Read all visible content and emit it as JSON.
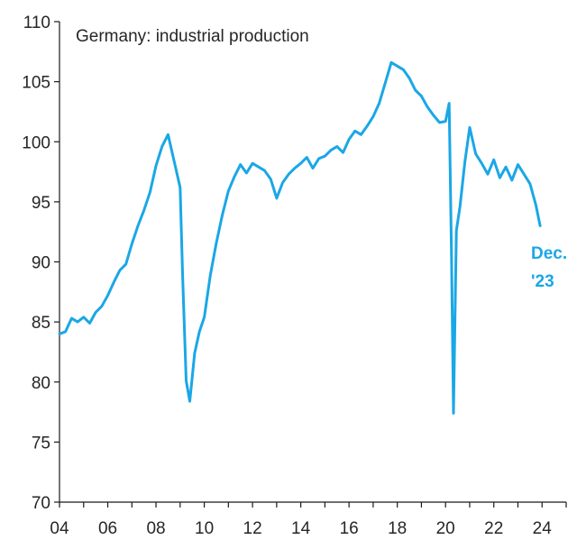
{
  "chart_data": {
    "type": "line",
    "title": "Germany: industrial production",
    "xlabel": "",
    "ylabel": "",
    "xlim": [
      2004,
      2025
    ],
    "ylim": [
      70,
      110
    ],
    "grid": false,
    "legend": "none",
    "x_ticks": [
      2004,
      2006,
      2008,
      2010,
      2012,
      2014,
      2016,
      2018,
      2020,
      2022,
      2024
    ],
    "x_tick_labels": [
      "04",
      "06",
      "08",
      "10",
      "12",
      "14",
      "16",
      "18",
      "20",
      "22",
      "24"
    ],
    "y_ticks": [
      70,
      75,
      80,
      85,
      90,
      95,
      100,
      105,
      110
    ],
    "y_tick_labels": [
      "70",
      "75",
      "80",
      "85",
      "90",
      "95",
      "100",
      "105",
      "110"
    ],
    "annotation": {
      "line1": "Dec.",
      "line2": "'23"
    },
    "series": [
      {
        "color": "#1aa7e6",
        "points": [
          [
            2004.0,
            84.0
          ],
          [
            2004.25,
            84.2
          ],
          [
            2004.5,
            85.3
          ],
          [
            2004.75,
            85.0
          ],
          [
            2005.0,
            85.4
          ],
          [
            2005.25,
            84.9
          ],
          [
            2005.5,
            85.8
          ],
          [
            2005.75,
            86.3
          ],
          [
            2006.0,
            87.2
          ],
          [
            2006.25,
            88.3
          ],
          [
            2006.5,
            89.3
          ],
          [
            2006.75,
            89.8
          ],
          [
            2007.0,
            91.5
          ],
          [
            2007.25,
            93.0
          ],
          [
            2007.5,
            94.3
          ],
          [
            2007.75,
            95.8
          ],
          [
            2008.0,
            98.0
          ],
          [
            2008.25,
            99.6
          ],
          [
            2008.5,
            100.6
          ],
          [
            2008.75,
            98.4
          ],
          [
            2009.0,
            96.2
          ],
          [
            2009.1,
            89.0
          ],
          [
            2009.25,
            80.1
          ],
          [
            2009.4,
            78.4
          ],
          [
            2009.6,
            82.4
          ],
          [
            2009.8,
            84.2
          ],
          [
            2010.0,
            85.4
          ],
          [
            2010.25,
            88.9
          ],
          [
            2010.5,
            91.6
          ],
          [
            2010.75,
            93.9
          ],
          [
            2011.0,
            95.9
          ],
          [
            2011.25,
            97.1
          ],
          [
            2011.5,
            98.1
          ],
          [
            2011.75,
            97.4
          ],
          [
            2012.0,
            98.2
          ],
          [
            2012.25,
            97.9
          ],
          [
            2012.5,
            97.6
          ],
          [
            2012.75,
            96.9
          ],
          [
            2013.0,
            95.3
          ],
          [
            2013.25,
            96.6
          ],
          [
            2013.5,
            97.3
          ],
          [
            2013.75,
            97.8
          ],
          [
            2014.0,
            98.2
          ],
          [
            2014.25,
            98.7
          ],
          [
            2014.5,
            97.8
          ],
          [
            2014.75,
            98.6
          ],
          [
            2015.0,
            98.8
          ],
          [
            2015.25,
            99.3
          ],
          [
            2015.5,
            99.6
          ],
          [
            2015.75,
            99.1
          ],
          [
            2016.0,
            100.2
          ],
          [
            2016.25,
            100.9
          ],
          [
            2016.5,
            100.6
          ],
          [
            2016.75,
            101.3
          ],
          [
            2017.0,
            102.1
          ],
          [
            2017.25,
            103.2
          ],
          [
            2017.5,
            104.9
          ],
          [
            2017.75,
            106.6
          ],
          [
            2018.0,
            106.3
          ],
          [
            2018.25,
            106.0
          ],
          [
            2018.5,
            105.3
          ],
          [
            2018.75,
            104.3
          ],
          [
            2019.0,
            103.8
          ],
          [
            2019.25,
            102.9
          ],
          [
            2019.5,
            102.2
          ],
          [
            2019.75,
            101.6
          ],
          [
            2020.0,
            101.7
          ],
          [
            2020.15,
            103.2
          ],
          [
            2020.25,
            90.0
          ],
          [
            2020.33,
            77.4
          ],
          [
            2020.45,
            92.6
          ],
          [
            2020.6,
            94.6
          ],
          [
            2020.8,
            98.3
          ],
          [
            2021.0,
            101.2
          ],
          [
            2021.25,
            99.0
          ],
          [
            2021.5,
            98.2
          ],
          [
            2021.75,
            97.3
          ],
          [
            2022.0,
            98.5
          ],
          [
            2022.25,
            97.0
          ],
          [
            2022.5,
            97.9
          ],
          [
            2022.75,
            96.8
          ],
          [
            2023.0,
            98.1
          ],
          [
            2023.25,
            97.3
          ],
          [
            2023.5,
            96.5
          ],
          [
            2023.75,
            94.7
          ],
          [
            2023.92,
            93.0
          ]
        ]
      }
    ]
  }
}
